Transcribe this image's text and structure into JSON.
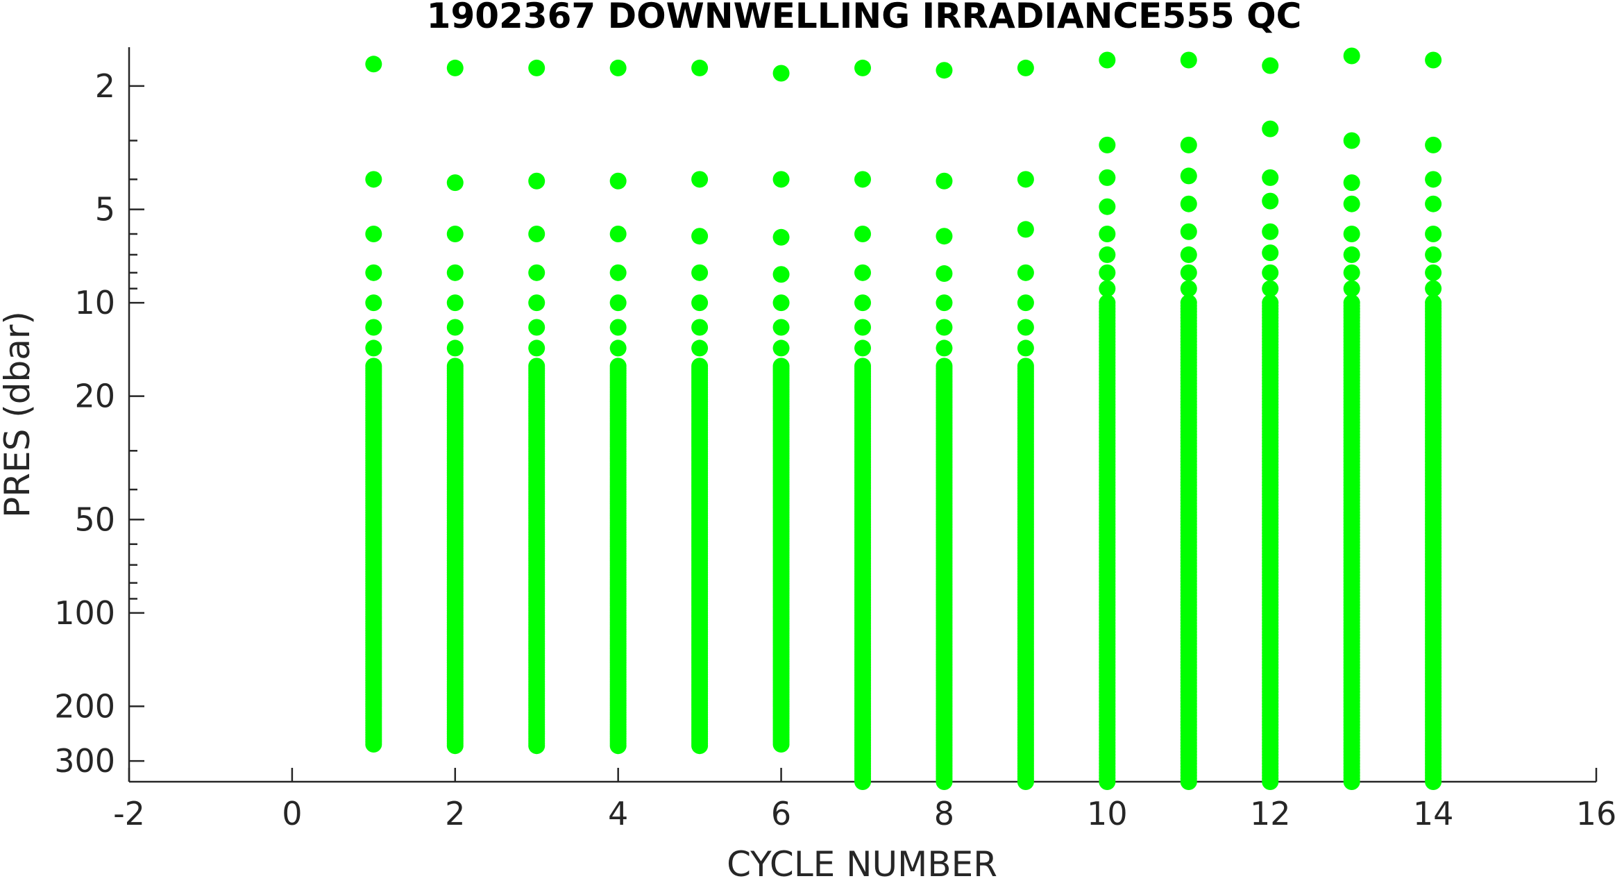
{
  "chart_data": {
    "type": "scatter",
    "title": "1902367  DOWNWELLING IRRADIANCE555 QC",
    "xlabel": "CYCLE NUMBER",
    "ylabel": "PRES (dbar)",
    "xlim": [
      -2,
      16
    ],
    "ylim": [
      1.5,
      350
    ],
    "y_scale": "log",
    "y_reversed": true,
    "xticks": [
      -2,
      0,
      2,
      4,
      6,
      8,
      10,
      12,
      14,
      16
    ],
    "xtick_labels": [
      "-2",
      "0",
      "2",
      "4",
      "6",
      "8",
      "10",
      "12",
      "14",
      "16"
    ],
    "yticks": [
      2,
      5,
      10,
      20,
      50,
      100,
      200,
      300
    ],
    "ytick_labels": [
      "2",
      "5",
      "10",
      "20",
      "50",
      "100",
      "200",
      "300"
    ],
    "grid": false,
    "marker_color": "#00ff00",
    "series": [
      {
        "cycle": 1,
        "pres_shallow": [
          1.7,
          4.0,
          6.0,
          8.0,
          10.0,
          12.0,
          14.0
        ],
        "profile_top": 16,
        "profile_bottom": 265
      },
      {
        "cycle": 2,
        "pres_shallow": [
          1.75,
          4.1,
          6.0,
          8.0,
          10.0,
          12.0,
          14.0
        ],
        "profile_top": 16,
        "profile_bottom": 268
      },
      {
        "cycle": 3,
        "pres_shallow": [
          1.75,
          4.05,
          6.0,
          8.0,
          10.0,
          12.0,
          14.0
        ],
        "profile_top": 16,
        "profile_bottom": 268
      },
      {
        "cycle": 4,
        "pres_shallow": [
          1.75,
          4.05,
          6.0,
          8.0,
          10.0,
          12.0,
          14.0
        ],
        "profile_top": 16,
        "profile_bottom": 268
      },
      {
        "cycle": 5,
        "pres_shallow": [
          1.75,
          4.0,
          6.1,
          8.0,
          10.0,
          12.0,
          14.0
        ],
        "profile_top": 16,
        "profile_bottom": 268
      },
      {
        "cycle": 6,
        "pres_shallow": [
          1.82,
          4.0,
          6.15,
          8.1,
          10.0,
          12.0,
          14.0
        ],
        "profile_top": 16,
        "profile_bottom": 265
      },
      {
        "cycle": 7,
        "pres_shallow": [
          1.75,
          4.0,
          6.0,
          8.0,
          10.0,
          12.0,
          14.0
        ],
        "profile_top": 16,
        "profile_bottom": 350
      },
      {
        "cycle": 8,
        "pres_shallow": [
          1.78,
          4.05,
          6.1,
          8.05,
          10.0,
          12.0,
          14.0
        ],
        "profile_top": 16,
        "profile_bottom": 350
      },
      {
        "cycle": 9,
        "pres_shallow": [
          1.75,
          4.0,
          5.8,
          8.0,
          10.0,
          12.0,
          14.0
        ],
        "profile_top": 16,
        "profile_bottom": 350
      },
      {
        "cycle": 10,
        "pres_shallow": [
          1.65,
          3.1,
          3.95,
          4.9,
          6.0,
          7.0,
          8.0,
          9.0
        ],
        "profile_top": 10,
        "profile_bottom": 350
      },
      {
        "cycle": 11,
        "pres_shallow": [
          1.65,
          3.1,
          3.9,
          4.8,
          5.9,
          7.0,
          8.0,
          9.0
        ],
        "profile_top": 10,
        "profile_bottom": 350
      },
      {
        "cycle": 12,
        "pres_shallow": [
          1.72,
          2.75,
          3.95,
          4.7,
          5.9,
          6.9,
          8.0,
          9.0
        ],
        "profile_top": 10,
        "profile_bottom": 350
      },
      {
        "cycle": 13,
        "pres_shallow": [
          1.6,
          3.0,
          4.1,
          4.8,
          6.0,
          7.0,
          8.0,
          9.0
        ],
        "profile_top": 10,
        "profile_bottom": 350
      },
      {
        "cycle": 14,
        "pres_shallow": [
          1.65,
          3.1,
          4.0,
          4.8,
          6.0,
          7.0,
          8.0,
          9.0
        ],
        "profile_top": 10,
        "profile_bottom": 350
      }
    ]
  }
}
